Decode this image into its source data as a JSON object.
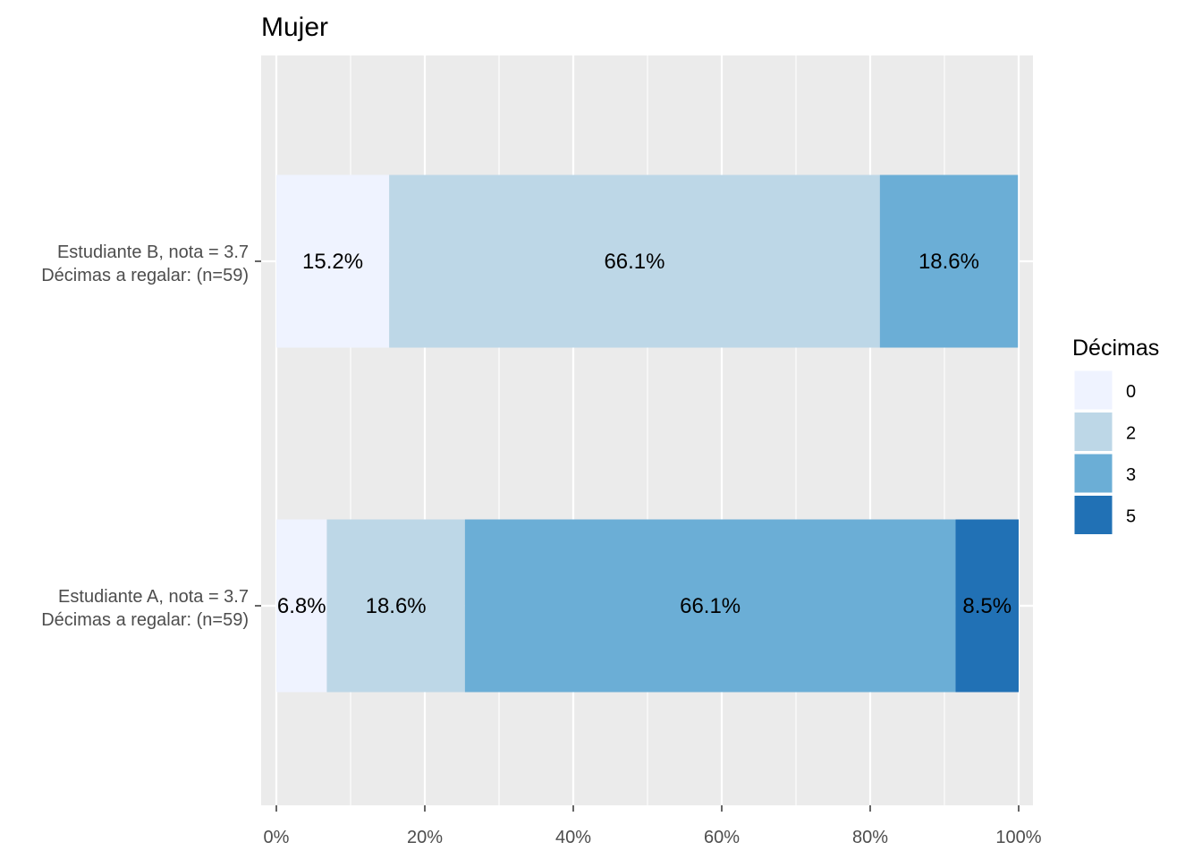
{
  "chart_data": {
    "type": "bar",
    "orientation": "horizontal",
    "stacked": true,
    "title": "Mujer",
    "xlabel": "",
    "ylabel": "",
    "xlim": [
      0,
      100
    ],
    "x_ticks": [
      "0%",
      "20%",
      "40%",
      "60%",
      "80%",
      "100%"
    ],
    "x_tick_values": [
      0,
      20,
      40,
      60,
      80,
      100
    ],
    "grid": true,
    "legend": {
      "title": "Décimas",
      "placement": "right",
      "entries": [
        {
          "label": "0",
          "color": "#eff3ff"
        },
        {
          "label": "2",
          "color": "#bdd7e7"
        },
        {
          "label": "3",
          "color": "#6baed6"
        },
        {
          "label": "5",
          "color": "#2171b5"
        }
      ]
    },
    "categories": [
      {
        "line1": "Estudiante B, nota = 3.7",
        "line2": "Décimas a regalar: (n=59)"
      },
      {
        "line1": "Estudiante A, nota = 3.7",
        "line2": "Décimas a regalar: (n=59)"
      }
    ],
    "series": [
      {
        "name": "0",
        "values": [
          15.2,
          6.8
        ],
        "labels": [
          "15.2%",
          "6.8%"
        ]
      },
      {
        "name": "2",
        "values": [
          66.1,
          18.6
        ],
        "labels": [
          "66.1%",
          "18.6%"
        ]
      },
      {
        "name": "3",
        "values": [
          18.6,
          66.1
        ],
        "labels": [
          "18.6%",
          "66.1%"
        ]
      },
      {
        "name": "5",
        "values": [
          0,
          8.5
        ],
        "labels": [
          "",
          "8.5%"
        ]
      }
    ]
  }
}
